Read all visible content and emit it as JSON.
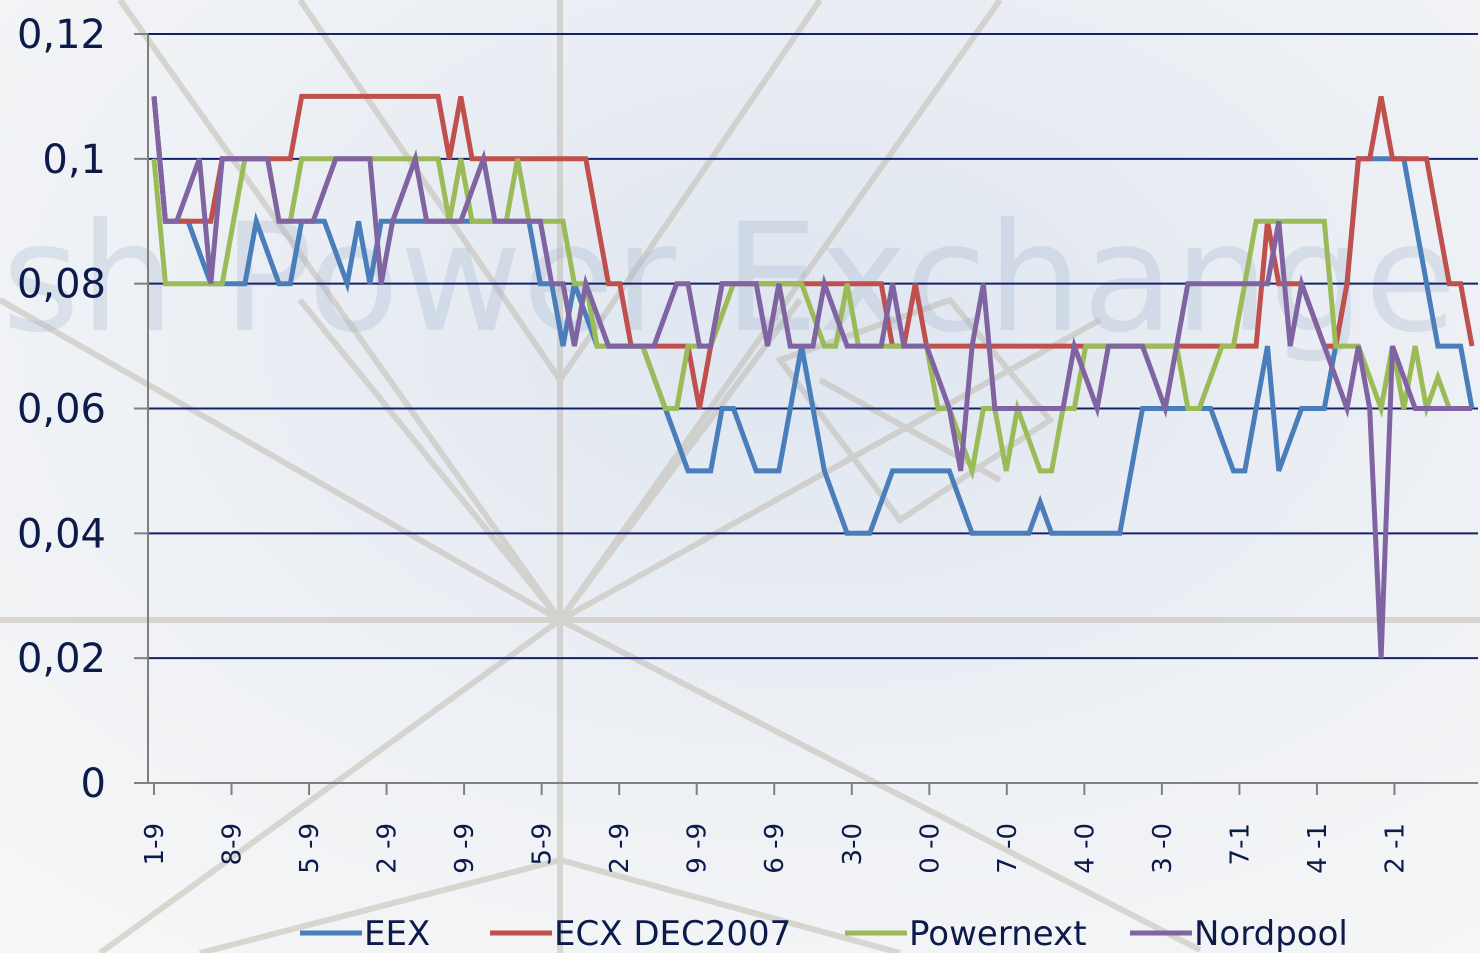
{
  "background": {
    "watermark_text": "ish Power Exchange"
  },
  "chart_data": {
    "type": "line",
    "title": "",
    "xlabel": "",
    "ylabel": "",
    "ylim": [
      0,
      0.12
    ],
    "yticks": [
      "0",
      "0,02",
      "0,04",
      "0,06",
      "0,08",
      "0,1",
      "0,12"
    ],
    "grid": true,
    "legend_position": "bottom",
    "x_tick_labels": [
      "1-9",
      "8-9",
      "5 -9",
      "2 -9",
      "9 -9",
      "5-9",
      "2 -9",
      "9 -9",
      "6 -9",
      "3-0",
      "0 -0",
      "7 -0",
      "4 -0",
      "3 -0",
      "7-1",
      "4 -1",
      "2 -1"
    ],
    "x_count": 117,
    "series": [
      {
        "name": "EEX",
        "color": "#4a7ebb",
        "values": [
          0.11,
          0.09,
          0.09,
          0.09,
          0.085,
          0.08,
          0.08,
          0.08,
          0.08,
          0.09,
          0.085,
          0.08,
          0.08,
          0.09,
          0.09,
          0.09,
          0.085,
          0.08,
          0.09,
          0.08,
          0.09,
          0.09,
          0.09,
          0.09,
          0.09,
          0.09,
          0.09,
          0.09,
          0.09,
          0.09,
          0.09,
          0.09,
          0.09,
          0.09,
          0.08,
          0.08,
          0.07,
          0.08,
          0.075,
          0.07,
          0.07,
          0.07,
          0.07,
          0.07,
          0.065,
          0.06,
          0.055,
          0.05,
          0.05,
          0.05,
          0.06,
          0.06,
          0.055,
          0.05,
          0.05,
          0.05,
          0.06,
          0.07,
          0.06,
          0.05,
          0.045,
          0.04,
          0.04,
          0.04,
          0.045,
          0.05,
          0.05,
          0.05,
          0.05,
          0.05,
          0.05,
          0.045,
          0.04,
          0.04,
          0.04,
          0.04,
          0.04,
          0.04,
          0.045,
          0.04,
          0.04,
          0.04,
          0.04,
          0.04,
          0.04,
          0.04,
          0.05,
          0.06,
          0.06,
          0.06,
          0.06,
          0.06,
          0.06,
          0.06,
          0.055,
          0.05,
          0.05,
          0.06,
          0.07,
          0.05,
          0.055,
          0.06,
          0.06,
          0.06,
          0.07,
          0.08,
          0.1,
          0.1,
          0.1,
          0.1,
          0.1,
          0.09,
          0.08,
          0.07,
          0.07,
          0.07,
          0.06
        ]
      },
      {
        "name": "ECX DEC2007",
        "color": "#c0504d",
        "values": [
          0.11,
          0.09,
          0.09,
          0.09,
          0.09,
          0.09,
          0.1,
          0.1,
          0.1,
          0.1,
          0.1,
          0.1,
          0.1,
          0.11,
          0.11,
          0.11,
          0.11,
          0.11,
          0.11,
          0.11,
          0.11,
          0.11,
          0.11,
          0.11,
          0.11,
          0.11,
          0.1,
          0.11,
          0.1,
          0.1,
          0.1,
          0.1,
          0.1,
          0.1,
          0.1,
          0.1,
          0.1,
          0.1,
          0.1,
          0.09,
          0.08,
          0.08,
          0.07,
          0.07,
          0.07,
          0.07,
          0.07,
          0.07,
          0.06,
          0.07,
          0.08,
          0.08,
          0.08,
          0.08,
          0.08,
          0.08,
          0.08,
          0.08,
          0.08,
          0.08,
          0.08,
          0.08,
          0.08,
          0.08,
          0.08,
          0.07,
          0.07,
          0.08,
          0.07,
          0.07,
          0.07,
          0.07,
          0.07,
          0.07,
          0.07,
          0.07,
          0.07,
          0.07,
          0.07,
          0.07,
          0.07,
          0.07,
          0.07,
          0.07,
          0.07,
          0.07,
          0.07,
          0.07,
          0.07,
          0.07,
          0.07,
          0.07,
          0.07,
          0.07,
          0.07,
          0.07,
          0.07,
          0.07,
          0.09,
          0.08,
          0.08,
          0.08,
          0.075,
          0.07,
          0.07,
          0.08,
          0.1,
          0.1,
          0.11,
          0.1,
          0.1,
          0.1,
          0.1,
          0.09,
          0.08,
          0.08,
          0.07
        ]
      },
      {
        "name": "Powernext",
        "color": "#9bbb59",
        "values": [
          0.1,
          0.08,
          0.08,
          0.08,
          0.08,
          0.08,
          0.08,
          0.09,
          0.1,
          0.1,
          0.1,
          0.09,
          0.09,
          0.1,
          0.1,
          0.1,
          0.1,
          0.1,
          0.1,
          0.1,
          0.1,
          0.1,
          0.1,
          0.1,
          0.1,
          0.1,
          0.09,
          0.1,
          0.09,
          0.09,
          0.09,
          0.09,
          0.1,
          0.09,
          0.09,
          0.09,
          0.09,
          0.08,
          0.08,
          0.07,
          0.07,
          0.07,
          0.07,
          0.07,
          0.065,
          0.06,
          0.06,
          0.07,
          0.07,
          0.07,
          0.075,
          0.08,
          0.08,
          0.08,
          0.08,
          0.08,
          0.08,
          0.08,
          0.075,
          0.07,
          0.07,
          0.08,
          0.07,
          0.07,
          0.07,
          0.07,
          0.07,
          0.07,
          0.07,
          0.06,
          0.06,
          0.055,
          0.05,
          0.06,
          0.06,
          0.05,
          0.06,
          0.055,
          0.05,
          0.05,
          0.06,
          0.06,
          0.07,
          0.07,
          0.07,
          0.07,
          0.07,
          0.07,
          0.07,
          0.07,
          0.07,
          0.06,
          0.06,
          0.065,
          0.07,
          0.07,
          0.08,
          0.09,
          0.09,
          0.09,
          0.09,
          0.09,
          0.09,
          0.09,
          0.07,
          0.07,
          0.07,
          0.065,
          0.06,
          0.07,
          0.06,
          0.07,
          0.06,
          0.065,
          0.06,
          0.06,
          0.06
        ]
      },
      {
        "name": "Nordpool",
        "color": "#8064a2",
        "values": [
          0.11,
          0.09,
          0.09,
          0.095,
          0.1,
          0.08,
          0.1,
          0.1,
          0.1,
          0.1,
          0.1,
          0.09,
          0.09,
          0.09,
          0.09,
          0.095,
          0.1,
          0.1,
          0.1,
          0.1,
          0.08,
          0.09,
          0.095,
          0.1,
          0.09,
          0.09,
          0.09,
          0.09,
          0.095,
          0.1,
          0.09,
          0.09,
          0.09,
          0.09,
          0.09,
          0.08,
          0.08,
          0.07,
          0.08,
          0.075,
          0.07,
          0.07,
          0.07,
          0.07,
          0.07,
          0.075,
          0.08,
          0.08,
          0.07,
          0.07,
          0.08,
          0.08,
          0.08,
          0.08,
          0.07,
          0.08,
          0.07,
          0.07,
          0.07,
          0.08,
          0.075,
          0.07,
          0.07,
          0.07,
          0.07,
          0.08,
          0.07,
          0.07,
          0.07,
          0.065,
          0.06,
          0.05,
          0.07,
          0.08,
          0.06,
          0.06,
          0.06,
          0.06,
          0.06,
          0.06,
          0.06,
          0.07,
          0.065,
          0.06,
          0.07,
          0.07,
          0.07,
          0.07,
          0.065,
          0.06,
          0.07,
          0.08,
          0.08,
          0.08,
          0.08,
          0.08,
          0.08,
          0.08,
          0.08,
          0.09,
          0.07,
          0.08,
          0.075,
          0.07,
          0.065,
          0.06,
          0.07,
          0.06,
          0.02,
          0.07,
          0.065,
          0.06,
          0.06,
          0.06,
          0.06,
          0.06,
          0.06
        ]
      }
    ]
  }
}
